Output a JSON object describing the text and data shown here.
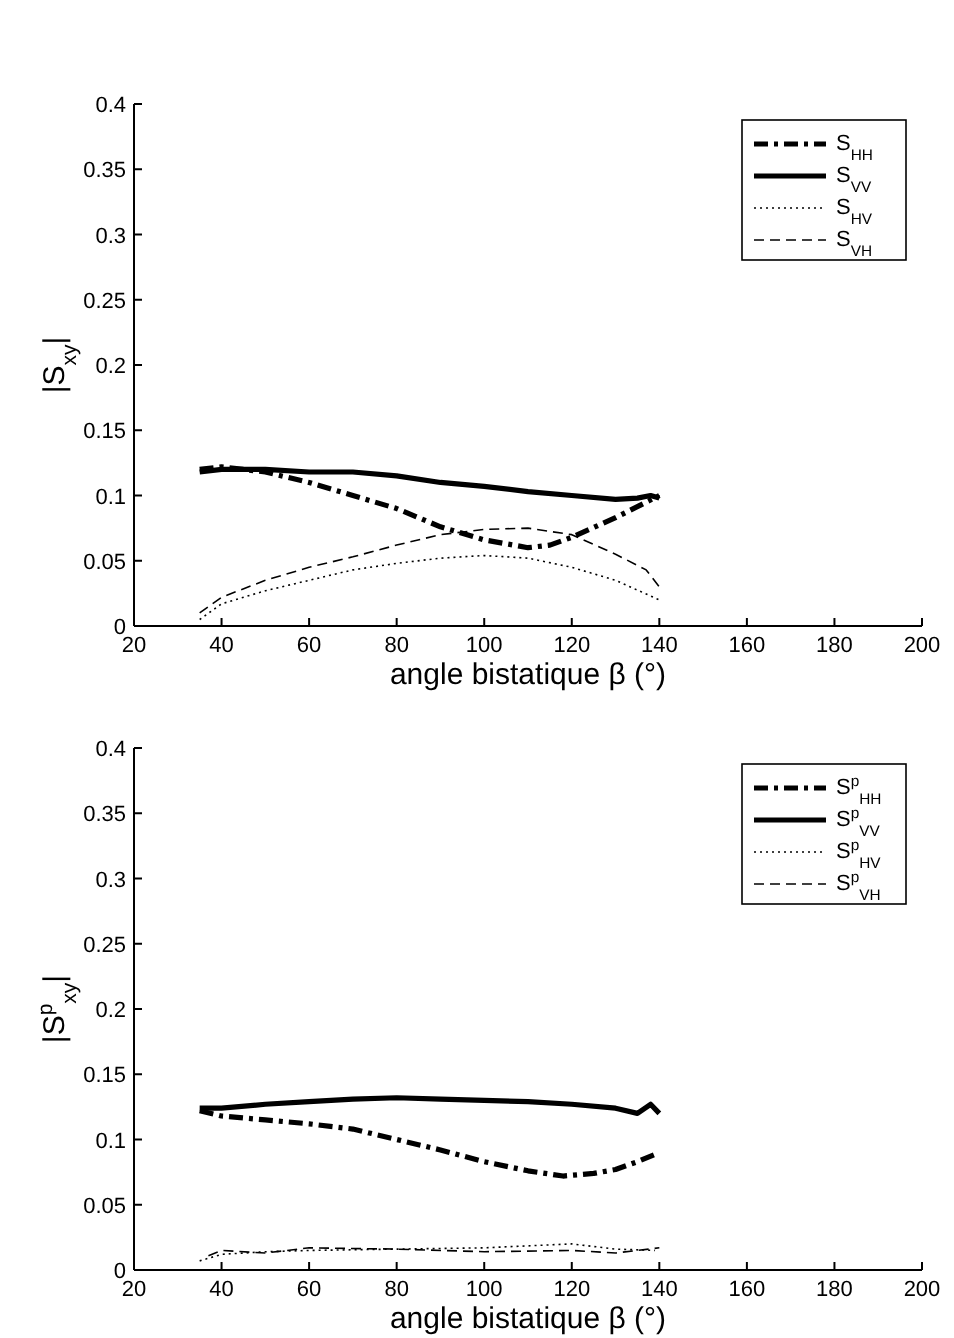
{
  "chart_data": [
    {
      "type": "line",
      "xlabel": "angle bistatique β (°)",
      "ylabel": "|S$_{xy}$|",
      "xlim": [
        20,
        200
      ],
      "xticks": [
        20,
        40,
        60,
        80,
        100,
        120,
        140,
        160,
        180,
        200
      ],
      "ylim": [
        0,
        0.4
      ],
      "yticks": [
        0,
        0.05,
        0.1,
        0.15,
        0.2,
        0.25,
        0.3,
        0.35,
        0.4
      ],
      "legend": "top right",
      "grid": false,
      "series": [
        {
          "name": "S$_{HH}$",
          "color": "#000000",
          "line_style": "dashdot",
          "x": [
            35,
            40,
            50,
            60,
            70,
            80,
            90,
            100,
            110,
            115,
            120,
            130,
            140
          ],
          "values": [
            0.12,
            0.122,
            0.118,
            0.11,
            0.1,
            0.09,
            0.076,
            0.066,
            0.06,
            0.062,
            0.068,
            0.083,
            0.1
          ]
        },
        {
          "name": "S$_{VV}$",
          "color": "#000000",
          "line_style": "solid",
          "x": [
            35,
            40,
            45,
            50,
            60,
            70,
            80,
            90,
            100,
            110,
            120,
            130,
            135,
            138,
            140
          ],
          "values": [
            0.118,
            0.12,
            0.12,
            0.12,
            0.118,
            0.118,
            0.115,
            0.11,
            0.107,
            0.103,
            0.1,
            0.097,
            0.098,
            0.1,
            0.098
          ]
        },
        {
          "name": "S$_{HV}$",
          "color": "#000000",
          "line_style": "dotted",
          "x": [
            35,
            40,
            50,
            60,
            70,
            80,
            90,
            100,
            110,
            120,
            130,
            140
          ],
          "values": [
            0.005,
            0.017,
            0.027,
            0.035,
            0.043,
            0.048,
            0.052,
            0.054,
            0.052,
            0.045,
            0.035,
            0.02
          ]
        },
        {
          "name": "S$_{VH}$",
          "color": "#000000",
          "line_style": "dashed",
          "x": [
            35,
            40,
            50,
            60,
            70,
            80,
            90,
            100,
            110,
            120,
            130,
            137,
            140
          ],
          "values": [
            0.01,
            0.022,
            0.035,
            0.045,
            0.053,
            0.062,
            0.07,
            0.074,
            0.075,
            0.07,
            0.055,
            0.043,
            0.03
          ]
        }
      ]
    },
    {
      "type": "line",
      "xlabel": "angle bistatique β (°)",
      "ylabel": "|S$^{p}$$_{xy}$|",
      "xlim": [
        20,
        200
      ],
      "xticks": [
        20,
        40,
        60,
        80,
        100,
        120,
        140,
        160,
        180,
        200
      ],
      "ylim": [
        0,
        0.4
      ],
      "yticks": [
        0,
        0.05,
        0.1,
        0.15,
        0.2,
        0.25,
        0.3,
        0.35,
        0.4
      ],
      "legend": "top right",
      "grid": false,
      "series": [
        {
          "name": "S$^{p}$$_{HH}$",
          "color": "#000000",
          "line_style": "dashdot",
          "x": [
            35,
            40,
            50,
            60,
            70,
            80,
            90,
            100,
            110,
            118,
            125,
            130,
            135,
            140
          ],
          "values": [
            0.122,
            0.118,
            0.115,
            0.112,
            0.108,
            0.1,
            0.092,
            0.083,
            0.076,
            0.072,
            0.074,
            0.077,
            0.083,
            0.09
          ]
        },
        {
          "name": "S$^{p}$$_{VV}$",
          "color": "#000000",
          "line_style": "solid",
          "x": [
            35,
            40,
            50,
            60,
            70,
            80,
            90,
            100,
            110,
            120,
            130,
            135,
            138,
            140
          ],
          "values": [
            0.124,
            0.124,
            0.127,
            0.129,
            0.131,
            0.132,
            0.131,
            0.13,
            0.129,
            0.127,
            0.124,
            0.12,
            0.127,
            0.12
          ]
        },
        {
          "name": "S$^{p}$$_{HV}$",
          "color": "#000000",
          "line_style": "dotted",
          "x": [
            35,
            40,
            50,
            60,
            80,
            100,
            120,
            130,
            139
          ],
          "values": [
            0.007,
            0.012,
            0.014,
            0.015,
            0.016,
            0.017,
            0.02,
            0.016,
            0.015
          ]
        },
        {
          "name": "S$^{p}$$_{VH}$",
          "color": "#000000",
          "line_style": "dashed",
          "x": [
            37,
            40,
            50,
            60,
            80,
            100,
            120,
            130,
            140
          ],
          "values": [
            0.011,
            0.015,
            0.013,
            0.017,
            0.016,
            0.014,
            0.015,
            0.013,
            0.017
          ]
        }
      ]
    }
  ]
}
